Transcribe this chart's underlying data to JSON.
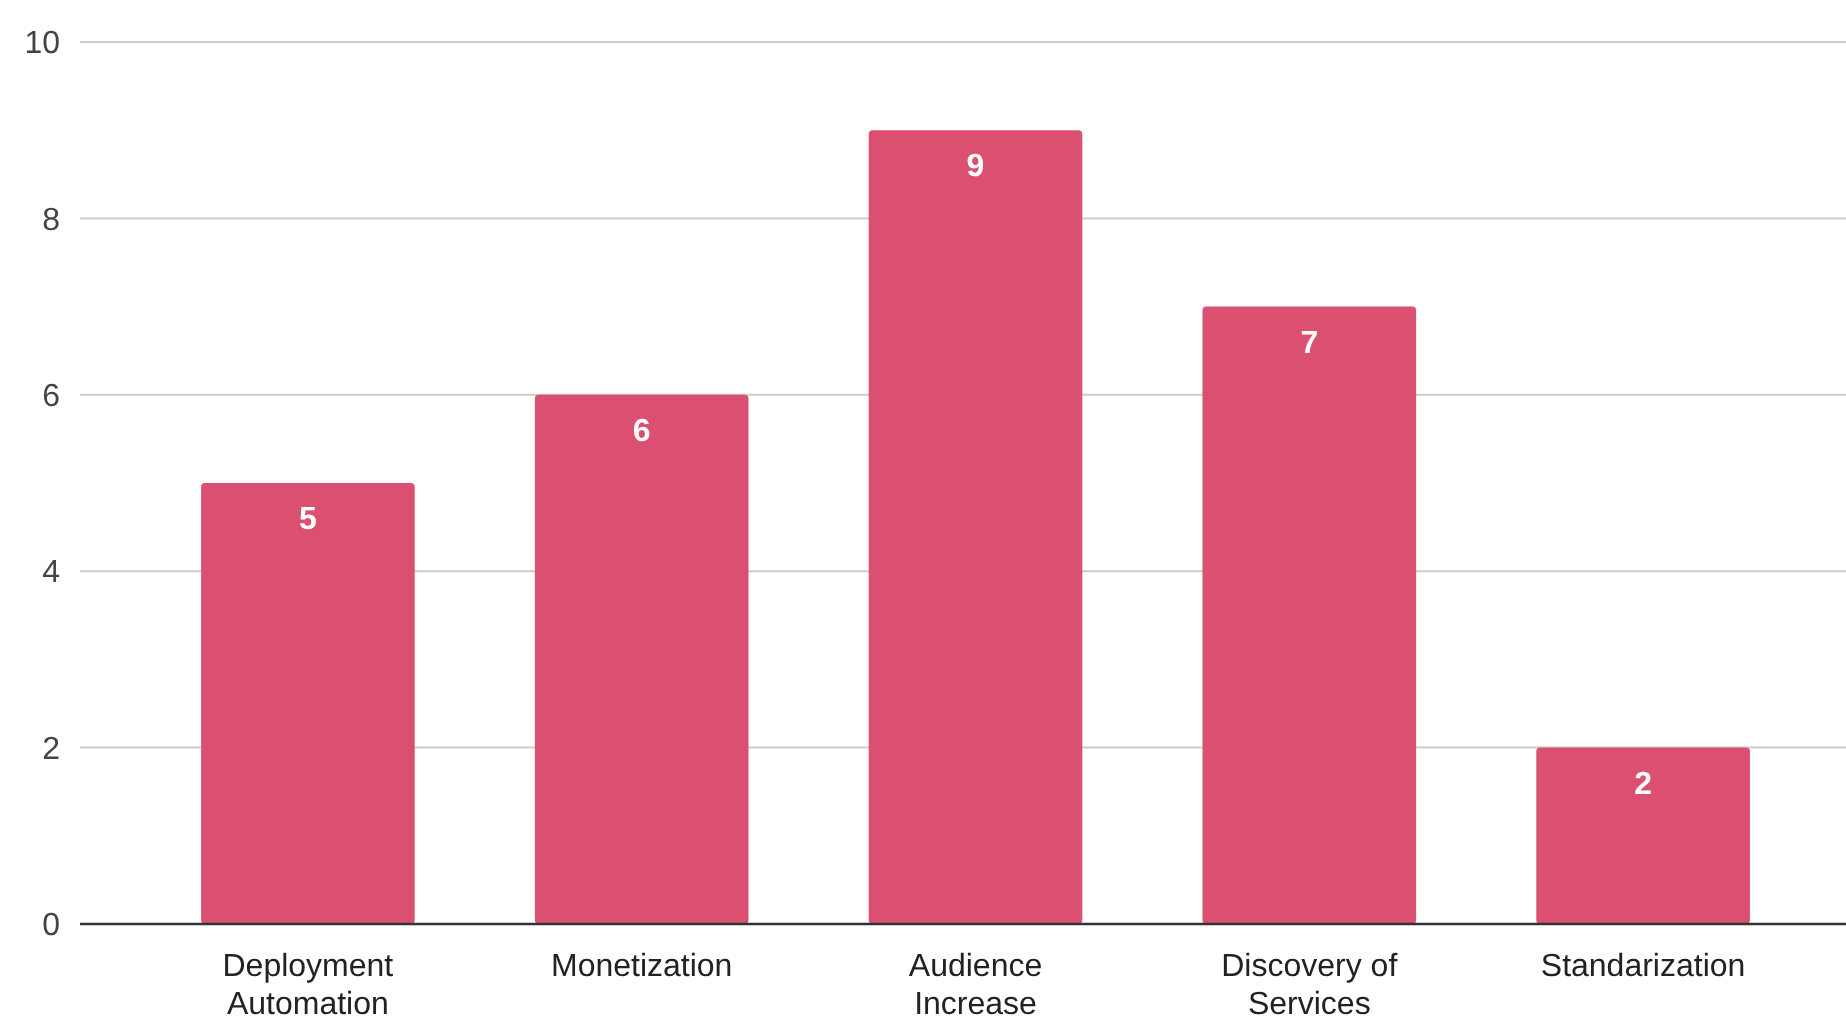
{
  "chart_data": {
    "type": "bar",
    "categories": [
      "Deployment Automation",
      "Monetization",
      "Audience Increase",
      "Discovery of Services",
      "Standarization"
    ],
    "values": [
      5,
      6,
      9,
      7,
      2
    ],
    "color": "#db5070",
    "ylim": [
      0,
      10
    ],
    "yticks": [
      0,
      2,
      4,
      6,
      8,
      10
    ],
    "grid": "y",
    "data_labels": true
  }
}
